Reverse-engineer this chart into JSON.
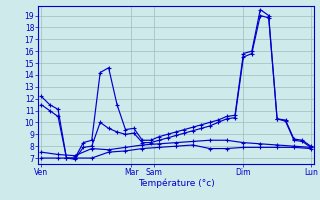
{
  "xlabel": "Température (°c)",
  "bg_color": "#ceeaea",
  "grid_color": "#9dbdbd",
  "line_color": "#0000cc",
  "ylim": [
    6.5,
    19.8
  ],
  "yticks": [
    7,
    8,
    9,
    10,
    11,
    12,
    13,
    14,
    15,
    16,
    17,
    18,
    19
  ],
  "x_labels": [
    "Ven",
    "Mar",
    "Sam",
    "Dim",
    "Lun"
  ],
  "x_ticks": [
    0,
    32,
    40,
    72,
    96
  ],
  "xlim": [
    -1,
    97
  ],
  "series1_x": [
    0,
    3,
    6,
    9,
    12,
    15,
    18,
    21,
    24,
    27,
    30,
    33,
    36,
    39,
    42,
    45,
    48,
    51,
    54,
    57,
    60,
    63,
    66,
    69,
    72,
    75,
    78,
    81,
    84,
    87,
    90,
    93,
    96
  ],
  "series1_y": [
    12.2,
    11.5,
    11.1,
    7.0,
    7.0,
    8.3,
    8.5,
    14.2,
    14.6,
    11.5,
    9.4,
    9.5,
    8.5,
    8.5,
    8.8,
    9.0,
    9.2,
    9.4,
    9.6,
    9.8,
    10.0,
    10.2,
    10.5,
    10.6,
    15.8,
    16.0,
    19.5,
    19.0,
    10.3,
    10.2,
    8.6,
    8.5,
    8.0
  ],
  "series2_x": [
    0,
    3,
    6,
    9,
    12,
    15,
    18,
    21,
    24,
    27,
    30,
    33,
    36,
    39,
    42,
    45,
    48,
    51,
    54,
    57,
    60,
    63,
    66,
    69,
    72,
    75,
    78,
    81,
    84,
    87,
    90,
    93,
    96
  ],
  "series2_y": [
    11.5,
    11.0,
    10.5,
    7.0,
    6.9,
    7.9,
    8.0,
    10.0,
    9.5,
    9.2,
    9.0,
    9.1,
    8.3,
    8.3,
    8.5,
    8.7,
    8.9,
    9.1,
    9.3,
    9.5,
    9.7,
    10.0,
    10.3,
    10.4,
    15.5,
    15.8,
    19.0,
    18.8,
    10.3,
    10.1,
    8.5,
    8.4,
    7.9
  ],
  "series3_x": [
    0,
    6,
    12,
    18,
    24,
    30,
    36,
    42,
    48,
    54,
    60,
    66,
    72,
    78,
    84,
    90,
    96
  ],
  "series3_y": [
    7.5,
    7.3,
    7.2,
    7.8,
    7.7,
    7.9,
    8.1,
    8.2,
    8.3,
    8.4,
    8.5,
    8.5,
    8.3,
    8.2,
    8.1,
    8.0,
    7.9
  ],
  "series4_x": [
    0,
    6,
    12,
    18,
    24,
    30,
    36,
    42,
    48,
    54,
    60,
    66,
    72,
    78,
    84,
    90,
    96
  ],
  "series4_y": [
    7.0,
    7.0,
    7.0,
    7.0,
    7.5,
    7.6,
    7.8,
    7.9,
    8.0,
    8.1,
    7.8,
    7.8,
    7.9,
    7.9,
    7.9,
    7.9,
    7.8
  ]
}
